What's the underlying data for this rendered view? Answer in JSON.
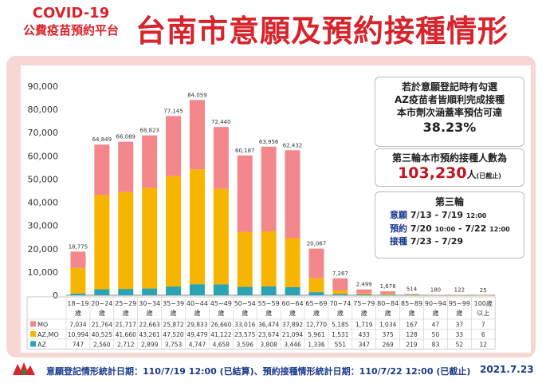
{
  "header": {
    "line1": "COVID-19",
    "line2": "公費疫苗預約平台",
    "title": "台南市意願及預約接種情形"
  },
  "info_box1": {
    "lines": [
      "若於意願登記時有勾選",
      "AZ疫苗者皆順利完成接種",
      "本市劑次涵蓋率預估可達"
    ],
    "rate": "38.23%"
  },
  "info_box2": {
    "title": "第三輪本市預約接種人數為",
    "value": "103,230",
    "unit": "人",
    "note": "(已截止)"
  },
  "info_box3": {
    "title": "第三輪",
    "rows": [
      {
        "label": "意願",
        "dates": "7/13 - 7/19",
        "time": "12:00"
      },
      {
        "label": "預約",
        "dates": "7/20",
        "time1": "10:00",
        "dates2": "- 7/22",
        "time": "12:00"
      },
      {
        "label": "接種",
        "dates": "7/23 - 7/29",
        "time": ""
      }
    ]
  },
  "footer": {
    "text": "意願登記情形統計日期：110/7/19 12:00 (已結算)、預約接種情形統計日期：110/7/22 12:00 (已截止)",
    "date": "2021.7.23"
  },
  "colors": {
    "MO": "#f4878b",
    "AZ,MO": "#f7b500",
    "AZ": "#2aa3b5",
    "title": "#d8242c"
  },
  "chart_data": {
    "type": "bar",
    "stacked": true,
    "categories": [
      "18~19歲",
      "20~24歲",
      "25~29歲",
      "30~34歲",
      "35~39歲",
      "40~44歲",
      "45~49歲",
      "50~54歲",
      "55~59歲",
      "60~64歲",
      "65~69歲",
      "70~74歲",
      "75~79歲",
      "80~84歲",
      "85~89歲",
      "90~94歲",
      "95~99歲",
      "100歲以上"
    ],
    "category_lines": [
      [
        "18~19",
        "歲"
      ],
      [
        "20~24",
        "歲"
      ],
      [
        "25~29",
        "歲"
      ],
      [
        "30~34",
        "歲"
      ],
      [
        "35~39",
        "歲"
      ],
      [
        "40~44",
        "歲"
      ],
      [
        "45~49",
        "歲"
      ],
      [
        "50~54",
        "歲"
      ],
      [
        "55~59",
        "歲"
      ],
      [
        "60~64",
        "歲"
      ],
      [
        "65~69",
        "歲"
      ],
      [
        "70~74",
        "歲"
      ],
      [
        "75~79",
        "歲"
      ],
      [
        "80~84",
        "歲"
      ],
      [
        "85~89",
        "歲"
      ],
      [
        "90~94",
        "歲"
      ],
      [
        "95~99",
        "歲"
      ],
      [
        "100歲",
        "以上"
      ]
    ],
    "series": [
      {
        "name": "AZ",
        "values": [
          747,
          2560,
          2712,
          2899,
          3753,
          4747,
          4658,
          3596,
          3808,
          3446,
          1336,
          551,
          347,
          269,
          219,
          83,
          52,
          12
        ]
      },
      {
        "name": "AZ,MO",
        "values": [
          10994,
          40525,
          41660,
          43261,
          47520,
          49479,
          41122,
          23575,
          23674,
          21094,
          5961,
          1531,
          433,
          375,
          128,
          50,
          33,
          6
        ]
      },
      {
        "name": "MO",
        "values": [
          7034,
          21764,
          21717,
          22663,
          25872,
          29833,
          26660,
          33016,
          36474,
          37892,
          12770,
          5185,
          1719,
          1034,
          167,
          47,
          37,
          7
        ]
      }
    ],
    "totals": [
      "18,775",
      "64,849",
      "66,089",
      "68,823",
      "77,145",
      "84,059",
      "72,440",
      "60,187",
      "63,956",
      "62,432",
      "20,067",
      "7,267",
      "2,499",
      "1,678",
      "514",
      "180",
      "122",
      "25"
    ],
    "table_rows": [
      {
        "name": "MO",
        "values": [
          "7,034",
          "21,764",
          "21,717",
          "22,663",
          "25,872",
          "29,833",
          "26,660",
          "33,016",
          "36,474",
          "37,892",
          "12,770",
          "5,185",
          "1,719",
          "1,034",
          "167",
          "47",
          "37",
          "7"
        ]
      },
      {
        "name": "AZ,MO",
        "values": [
          "10,994",
          "40,525",
          "41,660",
          "43,261",
          "47,520",
          "49,479",
          "41,122",
          "23,575",
          "23,674",
          "21,094",
          "5,961",
          "1,531",
          "433",
          "375",
          "128",
          "50",
          "33",
          "6"
        ]
      },
      {
        "name": "AZ",
        "values": [
          "747",
          "2,560",
          "2,712",
          "2,899",
          "3,753",
          "4,747",
          "4,658",
          "3,596",
          "3,808",
          "3,446",
          "1,336",
          "551",
          "347",
          "269",
          "219",
          "83",
          "52",
          "12"
        ]
      }
    ],
    "yticks": [
      "0",
      "10,000",
      "20,000",
      "30,000",
      "40,000",
      "50,000",
      "60,000",
      "70,000",
      "80,000",
      "90,000"
    ],
    "ylim": [
      0,
      90000
    ],
    "grid": false
  }
}
